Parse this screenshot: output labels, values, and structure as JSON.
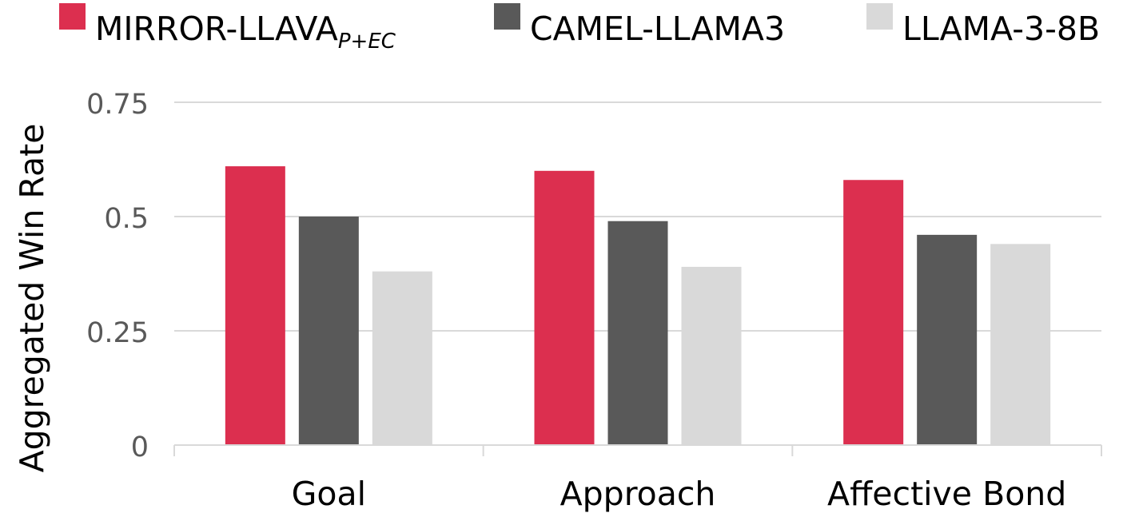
{
  "chart_data": {
    "type": "bar",
    "title": "",
    "xlabel": "",
    "ylabel": "Aggregated Win Rate",
    "ylim": [
      0,
      0.75
    ],
    "yticks": [
      {
        "value": 0,
        "label": "0"
      },
      {
        "value": 0.25,
        "label": "0.25"
      },
      {
        "value": 0.5,
        "label": "0.5"
      },
      {
        "value": 0.75,
        "label": "0.75"
      }
    ],
    "categories": [
      "Goal",
      "Approach",
      "Affective Bond"
    ],
    "series": [
      {
        "name": "MIRROR-LLAVA",
        "name_subscript": "P+EC",
        "color": "#dc2f4f",
        "values": [
          0.61,
          0.6,
          0.58
        ]
      },
      {
        "name": "CAMEL-LLAMA3",
        "color": "#595959",
        "values": [
          0.5,
          0.49,
          0.46
        ]
      },
      {
        "name": "LLAMA-3-8B",
        "color": "#d9d9d9",
        "values": [
          0.38,
          0.39,
          0.44
        ]
      }
    ],
    "grid": true,
    "legend_position": "top"
  }
}
